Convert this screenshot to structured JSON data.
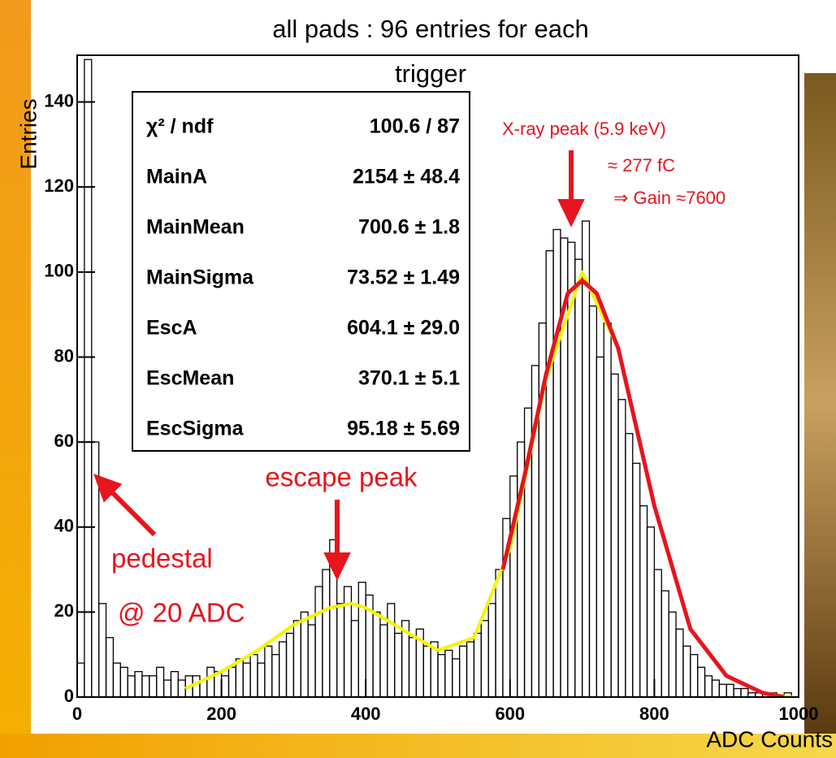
{
  "chart_data": {
    "type": "histogram",
    "title": "all pads : 96 entries for each trigger",
    "xlabel": "ADC Counts",
    "ylabel": "Entries",
    "bins": [
      0,
      10,
      20,
      30,
      40,
      50,
      60,
      70,
      80,
      90,
      100,
      110,
      120,
      130,
      140,
      150,
      160,
      170,
      180,
      190,
      200,
      210,
      220,
      230,
      240,
      250,
      260,
      270,
      280,
      290,
      300,
      310,
      320,
      330,
      340,
      350,
      360,
      370,
      380,
      390,
      400,
      410,
      420,
      430,
      440,
      450,
      460,
      470,
      480,
      490,
      500,
      510,
      520,
      530,
      540,
      550,
      560,
      570,
      580,
      590,
      600,
      610,
      620,
      630,
      640,
      650,
      660,
      670,
      680,
      690,
      700,
      710,
      720,
      730,
      740,
      750,
      760,
      770,
      780,
      790,
      800,
      810,
      820,
      830,
      840,
      850,
      860,
      870,
      880,
      890,
      900,
      910,
      920,
      930,
      940,
      950,
      960,
      970,
      980,
      990,
      1000
    ],
    "values": [
      8,
      150,
      60,
      22,
      14,
      8,
      7,
      5,
      6,
      5,
      5,
      7,
      4,
      6,
      4,
      5,
      5,
      4,
      7,
      6,
      5,
      7,
      9,
      8,
      10,
      8,
      12,
      10,
      13,
      15,
      18,
      20,
      17,
      26,
      30,
      37,
      22,
      26,
      18,
      27,
      24,
      20,
      17,
      22,
      15,
      18,
      14,
      16,
      12,
      13,
      10,
      11,
      9,
      12,
      13,
      15,
      18,
      22,
      30,
      42,
      52,
      60,
      68,
      78,
      88,
      105,
      110,
      108,
      107,
      103,
      112,
      92,
      80,
      88,
      76,
      70,
      62,
      55,
      45,
      40,
      30,
      25,
      20,
      16,
      12,
      10,
      7,
      5,
      4,
      3,
      3,
      2,
      2,
      1,
      1,
      1,
      1,
      0,
      1,
      0
    ],
    "color": "#000000",
    "fits": [
      {
        "color": "#f5f500",
        "x": [
          150,
          200,
          250,
          300,
          350,
          380,
          400,
          450,
          500,
          550,
          600,
          650,
          700,
          750,
          800,
          850,
          900,
          950,
          990
        ],
        "values": [
          2,
          6,
          11,
          17,
          21,
          22,
          21,
          16,
          11,
          14,
          35,
          75,
          100,
          82,
          45,
          16,
          5,
          1,
          0
        ]
      },
      {
        "color": "#e8141e",
        "x": [
          590,
          620,
          650,
          680,
          700,
          720,
          750,
          800,
          850,
          900,
          950,
          980
        ],
        "values": [
          30,
          52,
          76,
          95,
          98,
          95,
          82,
          45,
          16,
          5,
          1,
          0
        ]
      }
    ],
    "xlim": [
      0,
      1000
    ],
    "xticks": [
      0,
      200,
      400,
      600,
      800,
      1000
    ],
    "ylim": [
      0,
      151
    ],
    "yticks": [
      0,
      20,
      40,
      60,
      80,
      100,
      120,
      140
    ],
    "stats": [
      [
        "χ² / ndf",
        "100.6 / 87"
      ],
      [
        "MainA",
        "2154 ± 48.4"
      ],
      [
        "MainMean",
        "700.6 ± 1.8"
      ],
      [
        "MainSigma",
        "73.52 ± 1.49"
      ],
      [
        "EscA",
        "604.1 ± 29.0"
      ],
      [
        "EscMean",
        "370.1 ± 5.1"
      ],
      [
        "EscSigma",
        "95.18 ± 5.69"
      ]
    ],
    "annotations": [
      "X-ray peak (5.9 keV)",
      "≈ 277 fC",
      "⇒ Gain ≈7600",
      "escape peak",
      "pedestal",
      "@ 20 ADC"
    ]
  }
}
